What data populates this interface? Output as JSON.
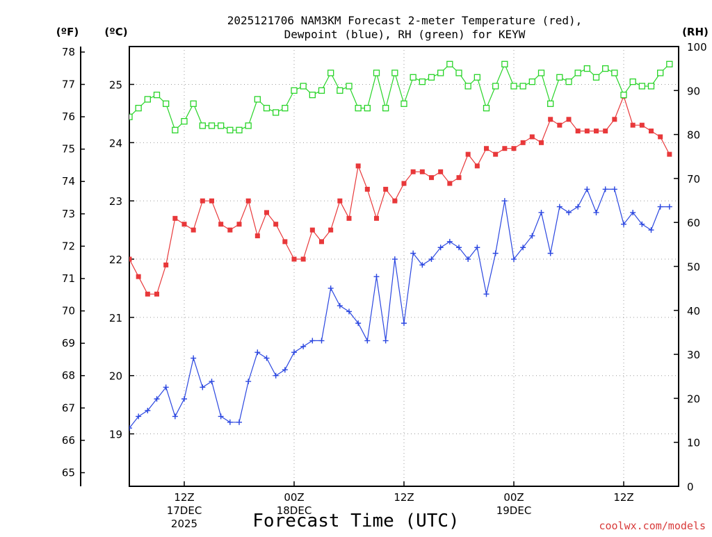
{
  "title_line1": "2025121706 NAM3KM Forecast 2-meter Temperature (red),",
  "title_line2": "Dewpoint (blue), RH (green) for KEYW",
  "units": {
    "fahrenheit": "(ºF)",
    "celsius": "(ºC)",
    "rh": "(RH)"
  },
  "xlabel": "Forecast Time (UTC)",
  "credit": "coolwx.com/models",
  "colors": {
    "temperature": "#e8383a",
    "dewpoint": "#2a46e0",
    "rh": "#28d428"
  },
  "chart_data": {
    "type": "line",
    "title": "2025121706 NAM3KM Forecast 2-meter Temperature (red), Dewpoint (blue), RH (green) for KEYW",
    "xlabel": "Forecast Time (UTC)",
    "x_unit": "forecast hour from 2025-12-17 06Z",
    "x": [
      6,
      7,
      8,
      9,
      10,
      11,
      12,
      13,
      14,
      15,
      16,
      17,
      18,
      19,
      20,
      21,
      22,
      23,
      24,
      25,
      26,
      27,
      28,
      29,
      30,
      31,
      32,
      33,
      34,
      35,
      36,
      37,
      38,
      39,
      40,
      41,
      42,
      43,
      44,
      45,
      46,
      47,
      48,
      49,
      50,
      51,
      52,
      53,
      54,
      55,
      56,
      57,
      58,
      59,
      60,
      61,
      62,
      63,
      64,
      65
    ],
    "xlim": [
      6,
      66
    ],
    "xticks": [
      {
        "x": 12,
        "label": "12Z",
        "label2": "17DEC",
        "label3": "2025"
      },
      {
        "x": 24,
        "label": "00Z",
        "label2": "18DEC",
        "label3": ""
      },
      {
        "x": 36,
        "label": "12Z",
        "label2": "",
        "label3": ""
      },
      {
        "x": 48,
        "label": "00Z",
        "label2": "19DEC",
        "label3": ""
      },
      {
        "x": 60,
        "label": "12Z",
        "label2": "",
        "label3": ""
      }
    ],
    "y_left_outer": {
      "label": "(ºF)",
      "ticks": [
        65,
        66,
        67,
        68,
        69,
        70,
        71,
        72,
        73,
        74,
        75,
        76,
        77,
        78
      ]
    },
    "y_left_inner": {
      "label": "(ºC)",
      "ticks": [
        19,
        20,
        21,
        22,
        23,
        24,
        25
      ],
      "ylim": [
        18.1,
        25.65
      ]
    },
    "y_right": {
      "label": "(RH)",
      "ticks": [
        0,
        10,
        20,
        30,
        40,
        50,
        60,
        70,
        80,
        90,
        100
      ],
      "ylim": [
        0,
        100
      ]
    },
    "grid": true,
    "series": [
      {
        "name": "Temperature (red)",
        "axis": "celsius",
        "marker": "filled-square",
        "values": [
          22.0,
          21.7,
          21.4,
          21.4,
          21.9,
          22.7,
          22.6,
          22.5,
          23.0,
          23.0,
          22.6,
          22.5,
          22.6,
          23.0,
          22.4,
          22.8,
          22.6,
          22.3,
          22.0,
          22.0,
          22.5,
          22.3,
          22.5,
          23.0,
          22.7,
          23.6,
          23.2,
          22.7,
          23.2,
          23.0,
          23.3,
          23.5,
          23.5,
          23.4,
          23.5,
          23.3,
          23.4,
          23.8,
          23.6,
          23.9,
          23.8,
          23.9,
          23.9,
          24.0,
          24.1,
          24.0,
          24.4,
          24.3,
          24.4,
          24.2,
          24.2,
          24.2,
          24.2,
          24.4,
          24.8,
          24.3,
          24.3,
          24.2,
          24.1,
          23.8
        ]
      },
      {
        "name": "Dewpoint (blue)",
        "axis": "celsius",
        "marker": "plus",
        "values": [
          19.1,
          19.3,
          19.4,
          19.6,
          19.8,
          19.3,
          19.6,
          20.3,
          19.8,
          19.9,
          19.3,
          19.2,
          19.2,
          19.9,
          20.4,
          20.3,
          20.0,
          20.1,
          20.4,
          20.5,
          20.6,
          20.6,
          21.5,
          21.2,
          21.1,
          20.9,
          20.6,
          21.7,
          20.6,
          22.0,
          20.9,
          22.1,
          21.9,
          22.0,
          22.2,
          22.3,
          22.2,
          22.0,
          22.2,
          21.4,
          22.1,
          23.0,
          22.0,
          22.2,
          22.4,
          22.8,
          22.1,
          22.9,
          22.8,
          22.9,
          23.2,
          22.8,
          23.2,
          23.2,
          22.6,
          22.8,
          22.6,
          22.5,
          22.9,
          22.9
        ]
      },
      {
        "name": "RH (green)",
        "axis": "rh",
        "marker": "open-square",
        "values": [
          84,
          86,
          88,
          89,
          87,
          81,
          83,
          87,
          82,
          82,
          82,
          81,
          81,
          82,
          88,
          86,
          85,
          86,
          90,
          91,
          89,
          90,
          94,
          90,
          91,
          86,
          86,
          94,
          86,
          94,
          87,
          93,
          92,
          93,
          94,
          96,
          94,
          91,
          93,
          86,
          91,
          96,
          91,
          91,
          92,
          94,
          87,
          93,
          92,
          94,
          95,
          93,
          95,
          94,
          89,
          92,
          91,
          91,
          94,
          96
        ]
      }
    ]
  }
}
